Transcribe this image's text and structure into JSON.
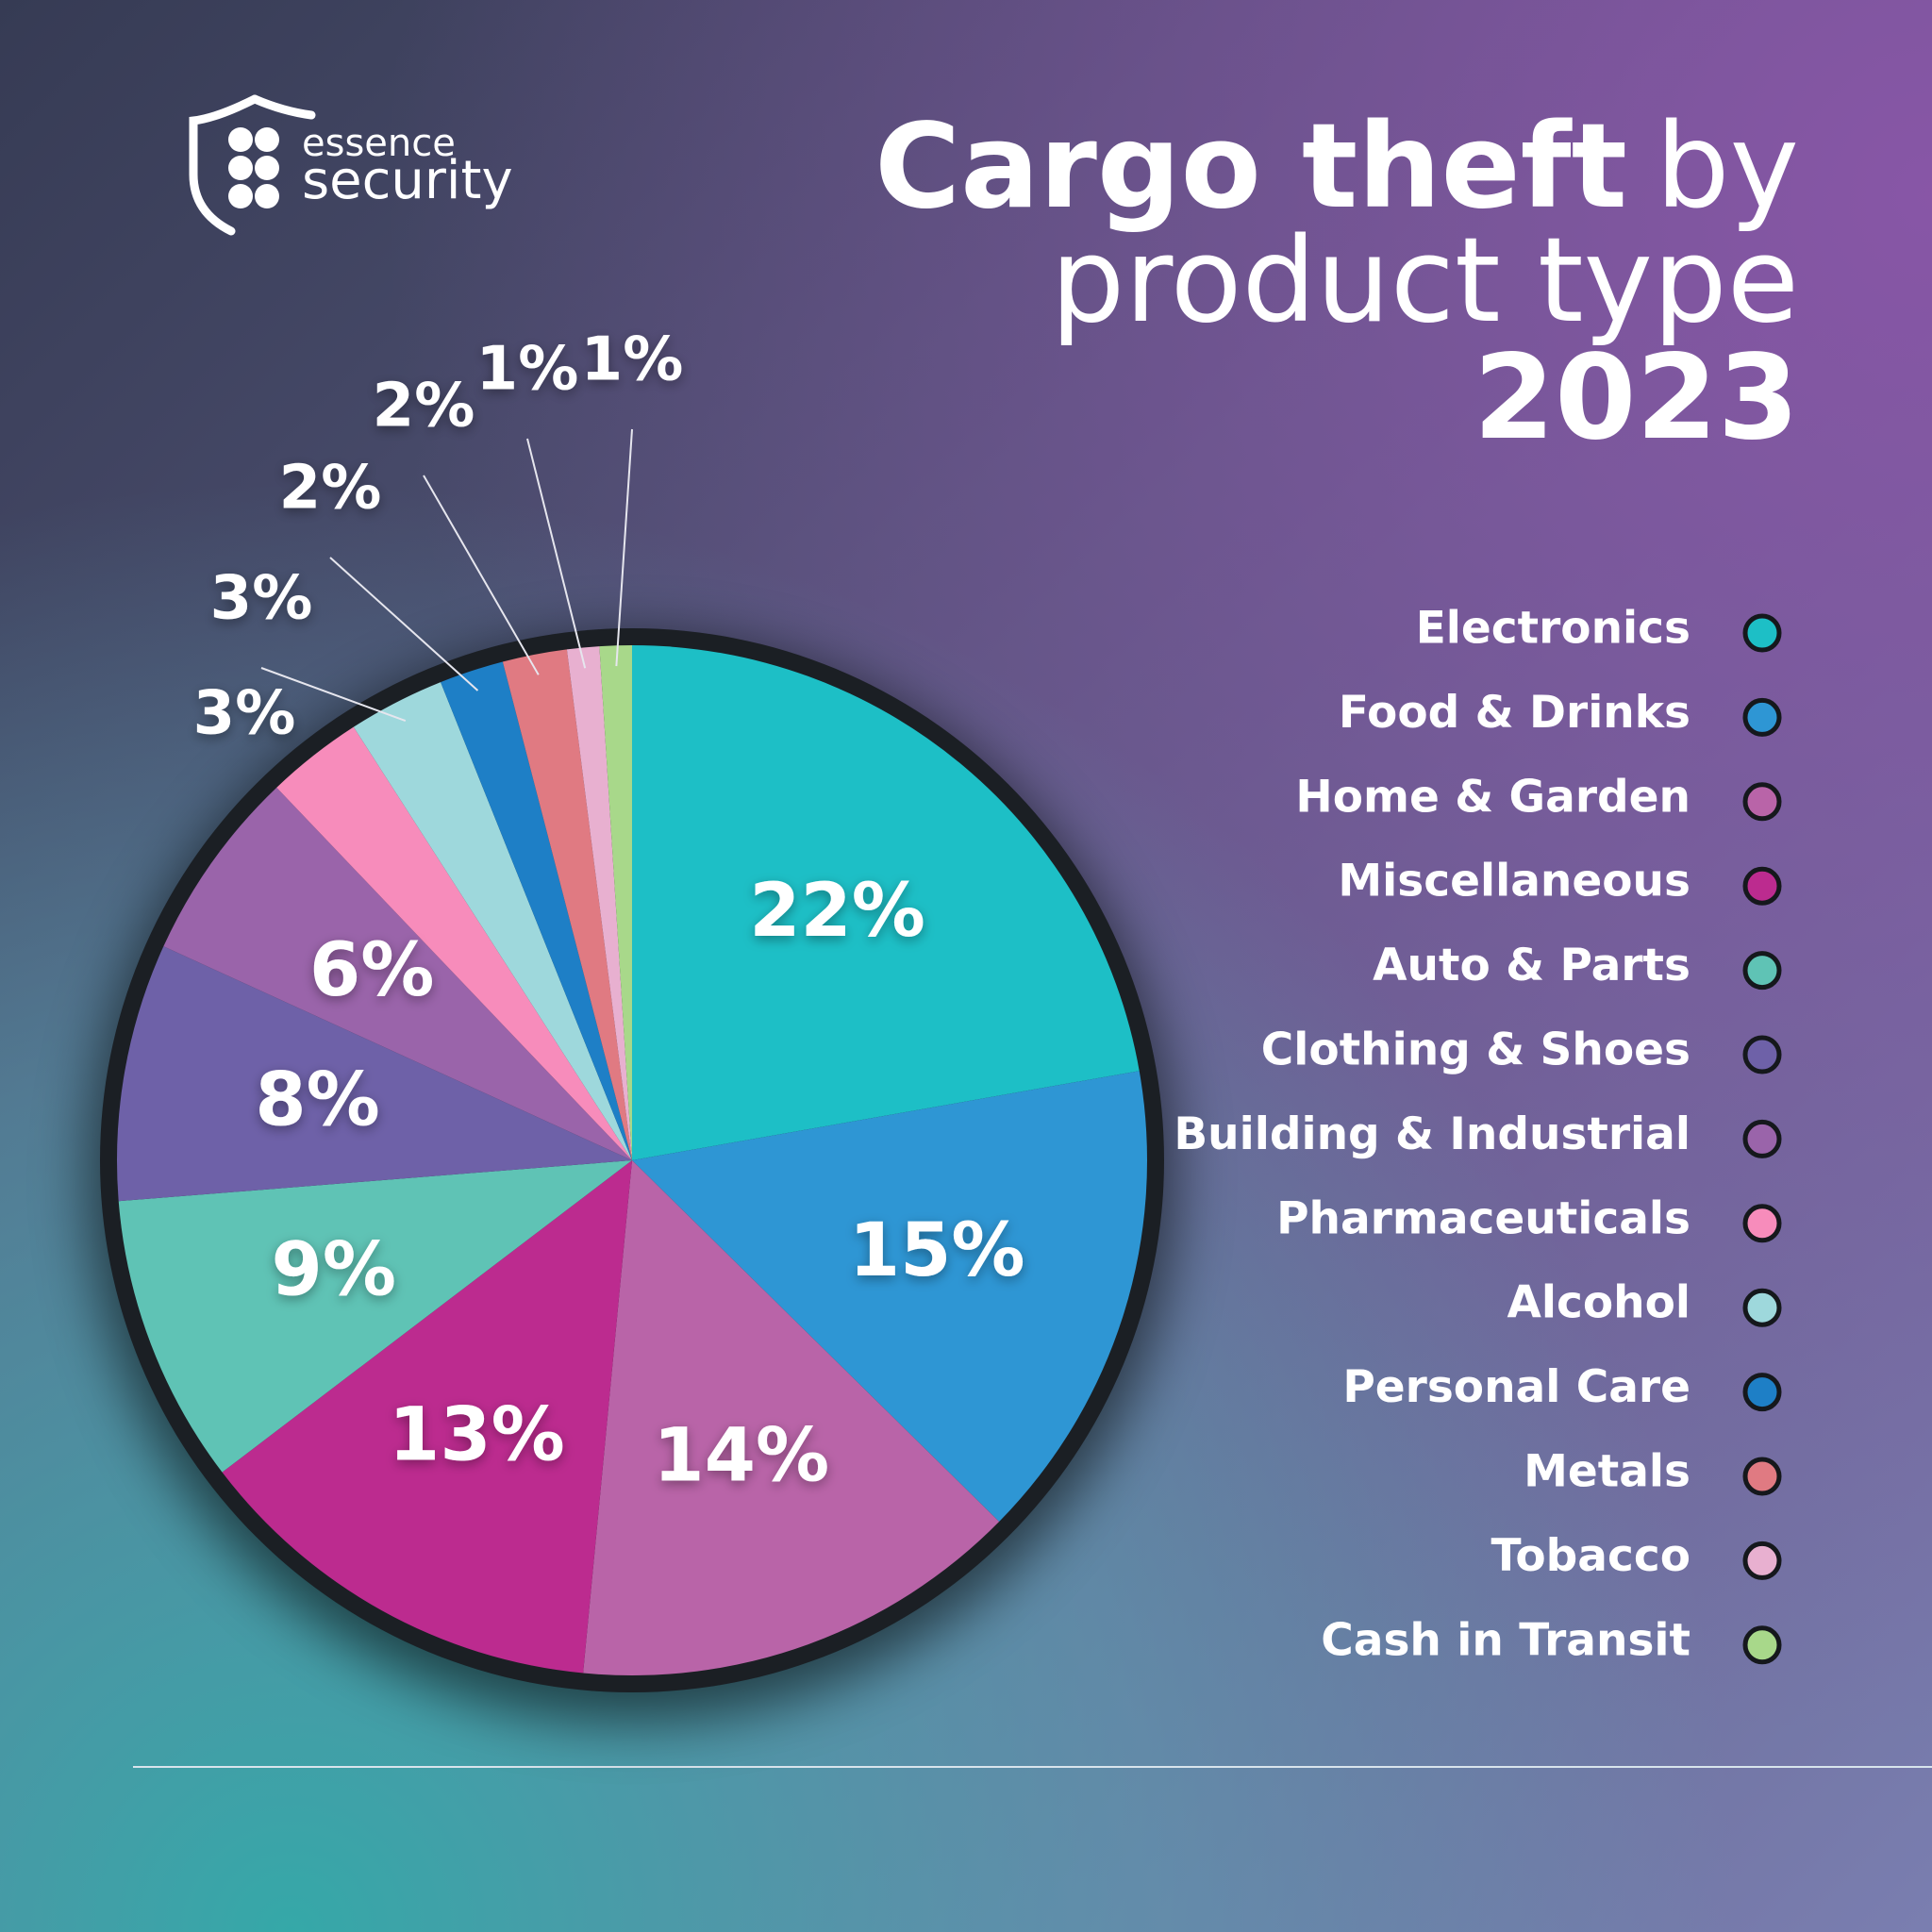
{
  "logo": {
    "top": "essence",
    "bottom": "security"
  },
  "chart_data": {
    "type": "pie",
    "title": [
      "Cargo theft",
      "by",
      "product type",
      "2023"
    ],
    "categories": [
      "Electronics",
      "Food & Drinks",
      "Home & Garden",
      "Miscellaneous",
      "Auto & Parts",
      "Clothing & Shoes",
      "Building & Industrial",
      "Pharmaceuticals",
      "Alcohol",
      "Personal Care",
      "Metals",
      "Tobacco",
      "Cash in Transit"
    ],
    "values": [
      22,
      15,
      14,
      13,
      9,
      8,
      6,
      3,
      3,
      2,
      2,
      1,
      1
    ],
    "value_labels": [
      "22%",
      "15%",
      "14%",
      "13%",
      "9%",
      "8%",
      "6%",
      "3%",
      "3%",
      "2%",
      "2%",
      "1%",
      "1%"
    ],
    "colors": [
      "#1dbfc6",
      "#2e96d4",
      "#b964a8",
      "#bc2b8f",
      "#5fc3b5",
      "#6e61a8",
      "#9a64aa",
      "#f78cbb",
      "#9ed8dc",
      "#1e7fc6",
      "#e07a82",
      "#e8b0d0",
      "#a8d88a"
    ],
    "legend": "right"
  }
}
